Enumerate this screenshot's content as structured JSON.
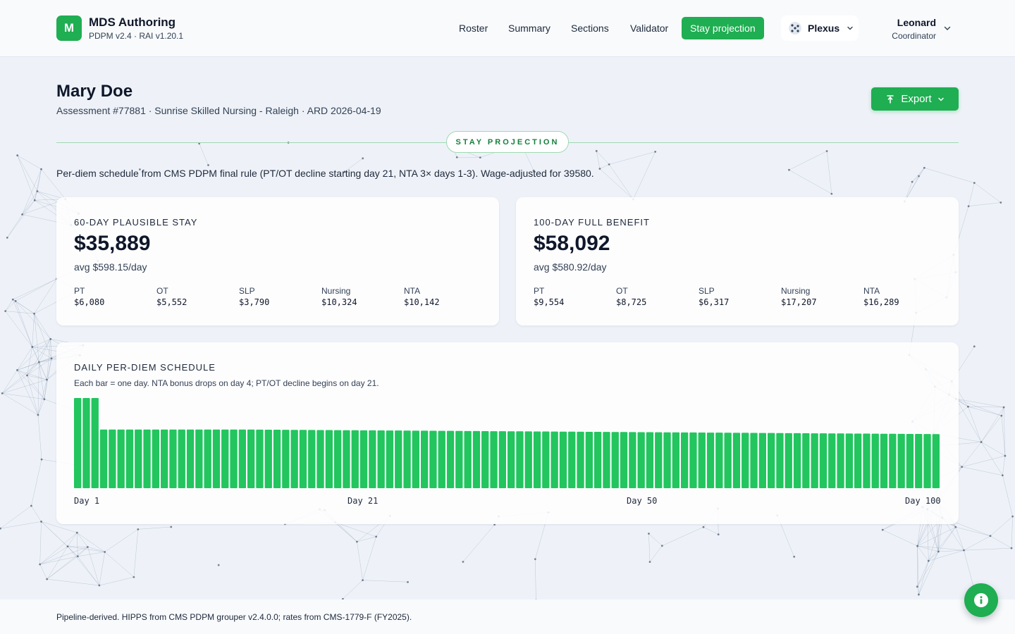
{
  "app": {
    "logo_letter": "M",
    "title": "MDS Authoring",
    "version": "PDPM v2.4 · RAI v1.20.1"
  },
  "nav": [
    {
      "label": "Roster"
    },
    {
      "label": "Summary"
    },
    {
      "label": "Sections"
    },
    {
      "label": "Validator"
    },
    {
      "label": "Stay projection",
      "active": true
    }
  ],
  "plexus": {
    "label": "Plexus"
  },
  "user": {
    "name": "Leonard",
    "role": "Coordinator"
  },
  "patient": {
    "name": "Mary Doe",
    "meta": "Assessment #77881 · Sunrise Skilled Nursing - Raleigh · ARD 2026-04-19"
  },
  "export_label": "Export",
  "section_label": "STAY PROJECTION",
  "description": "Per-diem schedule from CMS PDPM final rule (PT/OT decline starting day 21, NTA 3× days 1-3). Wage-adjusted for 39580.",
  "cards": [
    {
      "label": "60-DAY PLAUSIBLE STAY",
      "amount": "$35,889",
      "avg": "avg $598.15/day",
      "breakdown": [
        {
          "label": "PT",
          "value": "$6,080"
        },
        {
          "label": "OT",
          "value": "$5,552"
        },
        {
          "label": "SLP",
          "value": "$3,790"
        },
        {
          "label": "Nursing",
          "value": "$10,324"
        },
        {
          "label": "NTA",
          "value": "$10,142"
        }
      ]
    },
    {
      "label": "100-DAY FULL BENEFIT",
      "amount": "$58,092",
      "avg": "avg $580.92/day",
      "breakdown": [
        {
          "label": "PT",
          "value": "$9,554"
        },
        {
          "label": "OT",
          "value": "$8,725"
        },
        {
          "label": "SLP",
          "value": "$6,317"
        },
        {
          "label": "Nursing",
          "value": "$17,207"
        },
        {
          "label": "NTA",
          "value": "$16,289"
        }
      ]
    }
  ],
  "schedule": {
    "title": "DAILY PER-DIEM SCHEDULE",
    "subtitle": "Each bar = one day. NTA bonus drops on day 4; PT/OT decline begins on day 21.",
    "ticks": [
      "Day 1",
      "Day 21",
      "Day 50",
      "Day 100"
    ]
  },
  "chart_data": {
    "type": "bar",
    "x": "day 1-100",
    "values_by_range": [
      {
        "days": [
          1,
          3
        ],
        "value": 1.0
      },
      {
        "days": [
          4,
          20
        ],
        "value": 0.65
      },
      {
        "days": [
          21,
          100
        ],
        "value_start": 0.65,
        "value_end": 0.6,
        "note": "gradual decline"
      }
    ],
    "color": "#22c55e"
  },
  "footer": "Pipeline-derived. HIPPS from CMS PDPM grouper v2.4.0.0; rates from CMS-1779-F (FY2025).",
  "colors": {
    "accent": "#1fae52",
    "bar": "#22c55e",
    "pill_text": "#15803d"
  },
  "icons": {
    "export": "export-icon",
    "info": "info-icon",
    "plexus": "plexus-dots-icon"
  }
}
